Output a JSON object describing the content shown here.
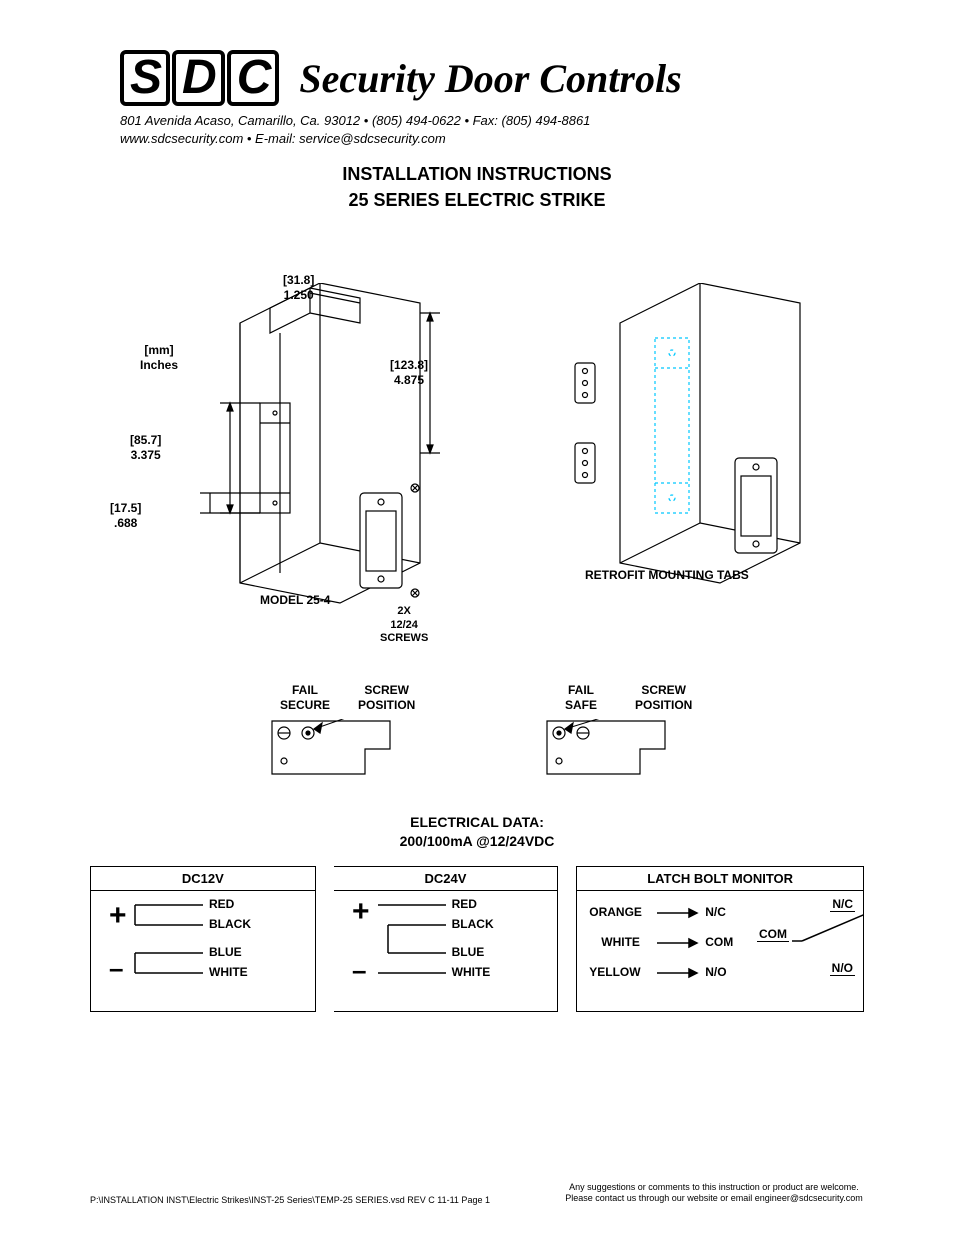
{
  "header": {
    "logo_letters": [
      "S",
      "D",
      "C"
    ],
    "logo_text": "Security Door Controls",
    "addr1": "801 Avenida Acaso, Camarillo, Ca. 93012  •  (805) 494-0622  •  Fax: (805) 494-8861",
    "addr2": "www.sdcsecurity.com  •  E-mail: service@sdcsecurity.com",
    "title1": "INSTALLATION INSTRUCTIONS",
    "title2": "25 SERIES ELECTRIC STRIKE"
  },
  "dims": {
    "units": "[mm]\nInches",
    "d1": "[31.8]\n1.250",
    "d2": "[123.8]\n4.875",
    "d3": "[85.7]\n3.375",
    "d4": "[17.5]\n.688",
    "model": "MODEL 25-4",
    "screws": "2X\n12/24\nSCREWS",
    "retrofit": "RETROFIT MOUNTING TABS",
    "failsecure": "FAIL\nSECURE",
    "failsafe": "FAIL\nSAFE",
    "screwpos": "SCREW\nPOSITION"
  },
  "elec": {
    "title1": "ELECTRICAL DATA:",
    "title2": "200/100mA @12/24VDC",
    "dc12": "DC12V",
    "dc24": "DC24V",
    "wires": [
      "RED",
      "BLACK",
      "BLUE",
      "WHITE"
    ],
    "latch_hdr": "LATCH BOLT MONITOR",
    "latch_rows": [
      {
        "c": "ORANGE",
        "t": "N/C"
      },
      {
        "c": "WHITE",
        "t": "COM"
      },
      {
        "c": "YELLOW",
        "t": "N/O"
      }
    ],
    "sw": {
      "nc": "N/C",
      "com": "COM",
      "no": "N/O"
    }
  },
  "footer": {
    "path": "P:\\INSTALLATION INST\\Electric Strikes\\INST-25 Series\\TEMP-25 SERIES.vsd    REV C    11-11   Page 1",
    "note": "Any suggestions or comments to this instruction or product are welcome.  Please contact us through our website or email engineer@sdcsecurity.com"
  },
  "colors": {
    "line": "#000000",
    "dash": "#00c8ff"
  }
}
